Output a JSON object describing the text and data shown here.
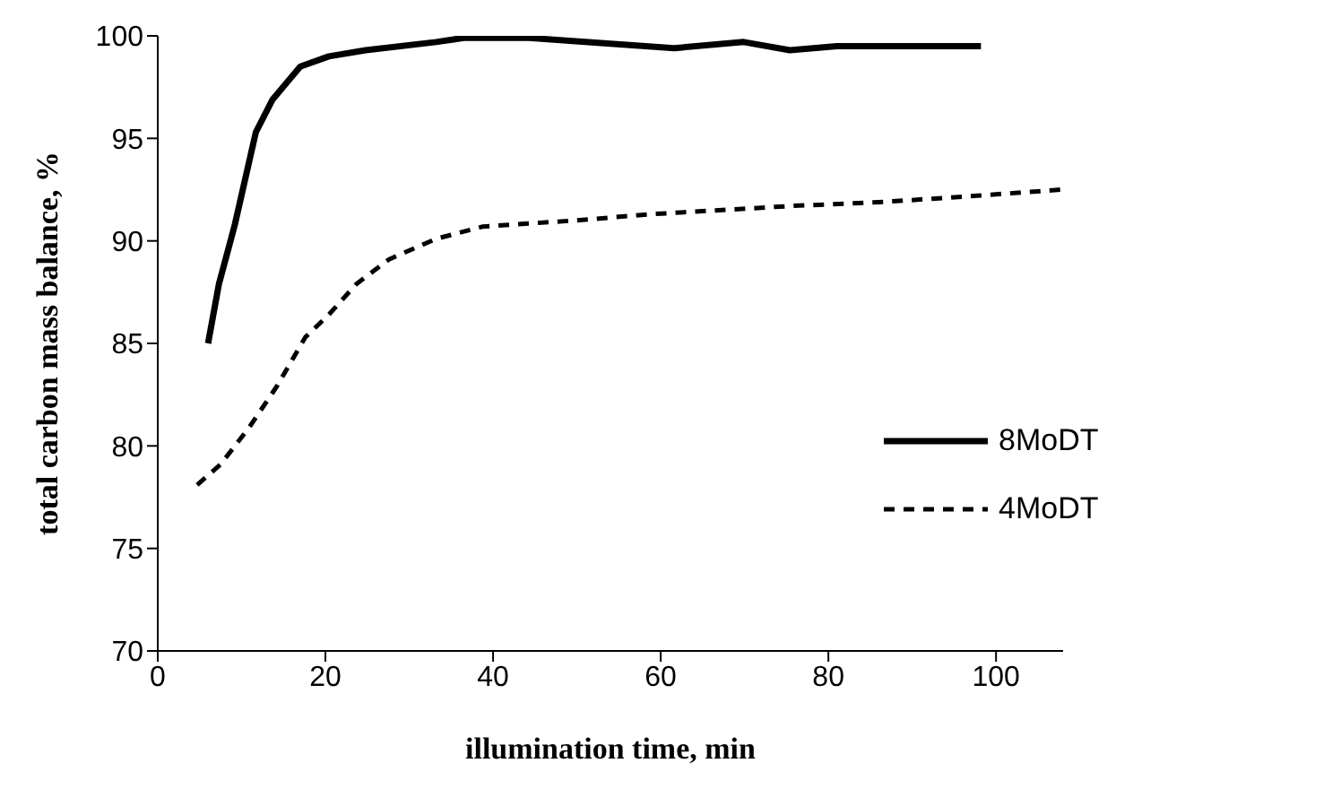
{
  "chart_data": {
    "type": "line",
    "xlabel": "illumination time, min",
    "ylabel": "total carbon mass balance, %",
    "xlim": [
      0,
      108
    ],
    "xticks": [
      0,
      20,
      40,
      60,
      80,
      100
    ],
    "ylim": [
      70,
      100
    ],
    "yticks": [
      70,
      75,
      80,
      85,
      90,
      95,
      100
    ],
    "grid": false,
    "legend": "right",
    "marker": "none",
    "series": [
      {
        "name": "8MoDT",
        "color": "#000000",
        "line_style": "solid",
        "x": [
          6,
          7.3,
          9.2,
          11.7,
          13.7,
          17,
          20.4,
          24.8,
          33.2,
          36.5,
          44.3,
          51,
          61.6,
          69.9,
          75.4,
          81,
          98.2
        ],
        "values": [
          85,
          87.9,
          90.8,
          95.3,
          96.9,
          98.5,
          99,
          99.3,
          99.7,
          99.9,
          99.9,
          99.7,
          99.4,
          99.7,
          99.3,
          99.5,
          99.5
        ]
      },
      {
        "name": "4MoDT",
        "color": "#000000",
        "line_style": "dashed",
        "x": [
          4.7,
          7.5,
          10.9,
          14.2,
          17.6,
          20.4,
          23.7,
          27.6,
          33.2,
          38.8,
          49.9,
          58.8,
          75.4,
          86.6,
          97.7,
          107.7
        ],
        "values": [
          78.1,
          79.1,
          80.9,
          82.9,
          85.3,
          86.4,
          87.9,
          89.1,
          90.1,
          90.7,
          91,
          91.3,
          91.7,
          91.9,
          92.2,
          92.5
        ]
      }
    ]
  }
}
